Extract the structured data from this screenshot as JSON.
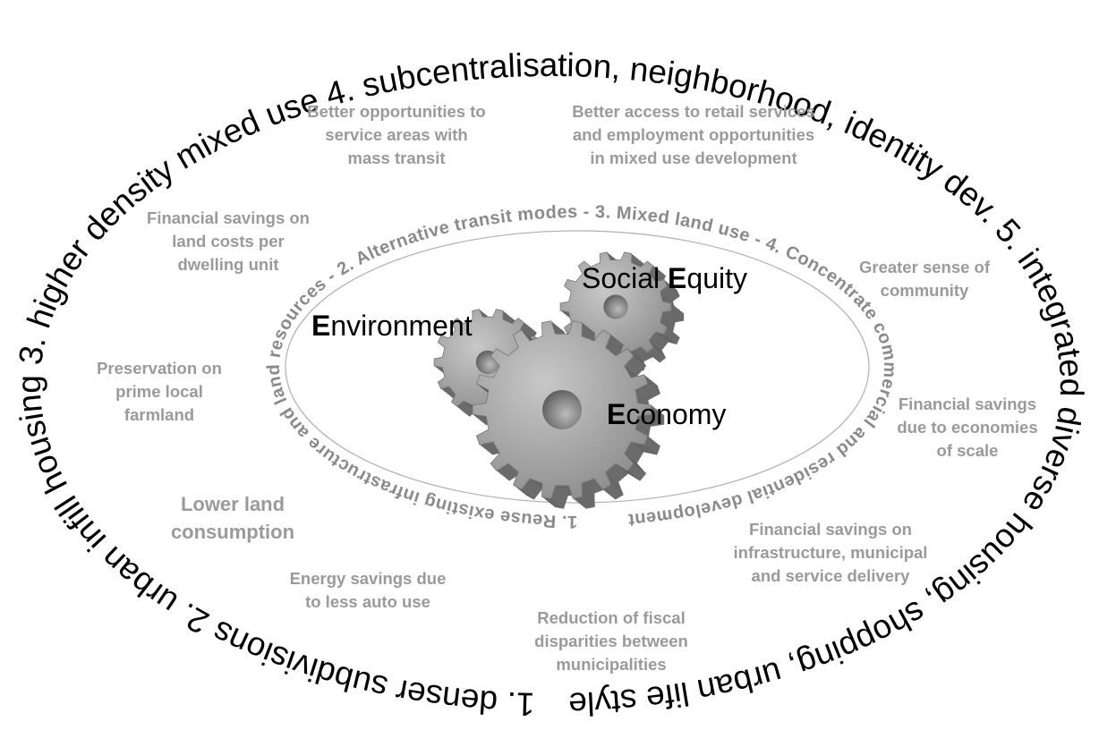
{
  "outer_ring": "1. denser subdivisions 2. urban infill housing 3. higher density mixed use 4. subcentralisation, neighborhood, identity dev. 5. integrated diverse housing, shopping, urban life style",
  "inner_ring": "1. Reuse existing infrastructure and land resources - 2. Alternative transit modes - 3. Mixed land use - 4. Concentrate commercial and residential development",
  "pillars": [
    {
      "bold": "E",
      "rest": "nvironment"
    },
    {
      "bold": "E",
      "rest": "conomy",
      "prefix": ""
    },
    {
      "prefix": "Social ",
      "bold": "E",
      "rest": "quity"
    }
  ],
  "benefits": [
    {
      "lines": [
        "Better opportunities to",
        "service areas with",
        "mass transit"
      ]
    },
    {
      "lines": [
        "Better access to retail services",
        "and employment opportunities",
        "in mixed use development"
      ]
    },
    {
      "lines": [
        "Financial savings on",
        "land costs per",
        "dwelling unit"
      ]
    },
    {
      "lines": [
        "Greater sense of",
        "community"
      ]
    },
    {
      "lines": [
        "Preservation on",
        "prime local",
        "farmland"
      ]
    },
    {
      "lines": [
        "Financial savings",
        "due to economies",
        "of scale"
      ]
    },
    {
      "lines": [
        "Lower land",
        "consumption"
      ]
    },
    {
      "lines": [
        "Financial savings on",
        "infrastructure, municipal",
        "and service delivery"
      ]
    },
    {
      "lines": [
        "Energy savings due",
        "to less auto use"
      ]
    },
    {
      "lines": [
        "Reduction of fiscal",
        "disparities between",
        "municipalities"
      ]
    }
  ]
}
